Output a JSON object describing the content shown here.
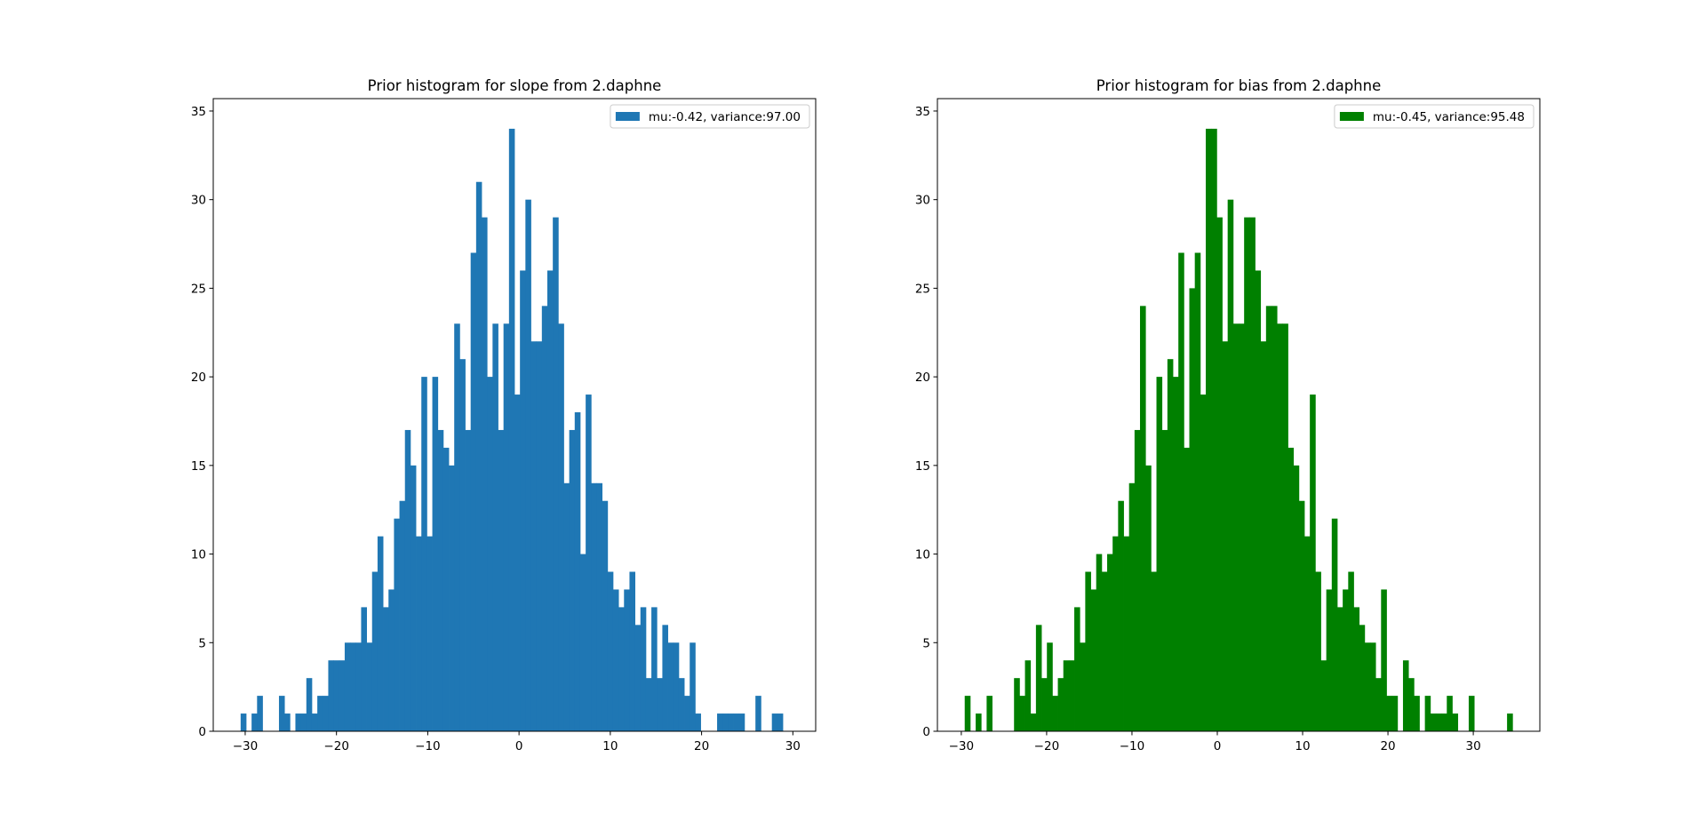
{
  "chart_data": [
    {
      "type": "bar",
      "title": "Prior histogram for slope from 2.daphne",
      "xlabel": "",
      "ylabel": "",
      "color": "#1f77b4",
      "bin_range": [
        -30.5,
        29.5
      ],
      "bin_count": 100,
      "xlim": [
        -33.5,
        32.5
      ],
      "ylim": [
        0,
        35.7
      ],
      "xticks": [
        -30,
        -20,
        -10,
        0,
        10,
        20,
        30
      ],
      "yticks": [
        0,
        5,
        10,
        15,
        20,
        25,
        30,
        35
      ],
      "grid": false,
      "legend": {
        "label": "mu:-0.42, variance:97.00",
        "placement": "upper right"
      },
      "counts": [
        1,
        0,
        1,
        2,
        0,
        0,
        0,
        2,
        1,
        0,
        1,
        1,
        3,
        1,
        2,
        2,
        4,
        4,
        4,
        5,
        5,
        5,
        7,
        5,
        9,
        11,
        7,
        8,
        12,
        13,
        17,
        15,
        11,
        20,
        11,
        20,
        17,
        16,
        15,
        23,
        21,
        17,
        27,
        31,
        29,
        20,
        23,
        17,
        23,
        34,
        19,
        26,
        30,
        22,
        22,
        24,
        26,
        29,
        23,
        14,
        17,
        18,
        10,
        19,
        14,
        14,
        13,
        9,
        8,
        7,
        8,
        9,
        6,
        7,
        3,
        7,
        3,
        6,
        5,
        5,
        3,
        2,
        5,
        1,
        0,
        0,
        0,
        1,
        1,
        1,
        1,
        1,
        0,
        0,
        2,
        0,
        0,
        1,
        1,
        0
      ]
    },
    {
      "type": "bar",
      "title": "Prior histogram for bias from 2.daphne",
      "xlabel": "",
      "ylabel": "",
      "color": "#008000",
      "bin_range": [
        -29.6,
        34.6
      ],
      "bin_count": 100,
      "xlim": [
        -32.8,
        37.8
      ],
      "ylim": [
        0,
        35.7
      ],
      "xticks": [
        -30,
        -20,
        -10,
        0,
        10,
        20,
        30
      ],
      "yticks": [
        0,
        5,
        10,
        15,
        20,
        25,
        30,
        35
      ],
      "grid": false,
      "legend": {
        "label": "mu:-0.45, variance:95.48",
        "placement": "upper right"
      },
      "counts": [
        2,
        0,
        1,
        0,
        2,
        0,
        0,
        0,
        0,
        3,
        2,
        4,
        1,
        6,
        3,
        5,
        2,
        3,
        4,
        4,
        7,
        5,
        9,
        8,
        10,
        9,
        10,
        11,
        13,
        11,
        14,
        17,
        24,
        15,
        9,
        20,
        17,
        21,
        20,
        27,
        16,
        25,
        27,
        19,
        34,
        34,
        29,
        22,
        30,
        23,
        23,
        29,
        29,
        26,
        22,
        24,
        24,
        23,
        23,
        16,
        15,
        13,
        11,
        19,
        9,
        4,
        8,
        12,
        7,
        8,
        9,
        7,
        6,
        5,
        5,
        3,
        8,
        2,
        2,
        0,
        4,
        3,
        2,
        0,
        2,
        1,
        1,
        1,
        2,
        1,
        0,
        0,
        2,
        0,
        0,
        0,
        0,
        0,
        0,
        1
      ]
    }
  ]
}
